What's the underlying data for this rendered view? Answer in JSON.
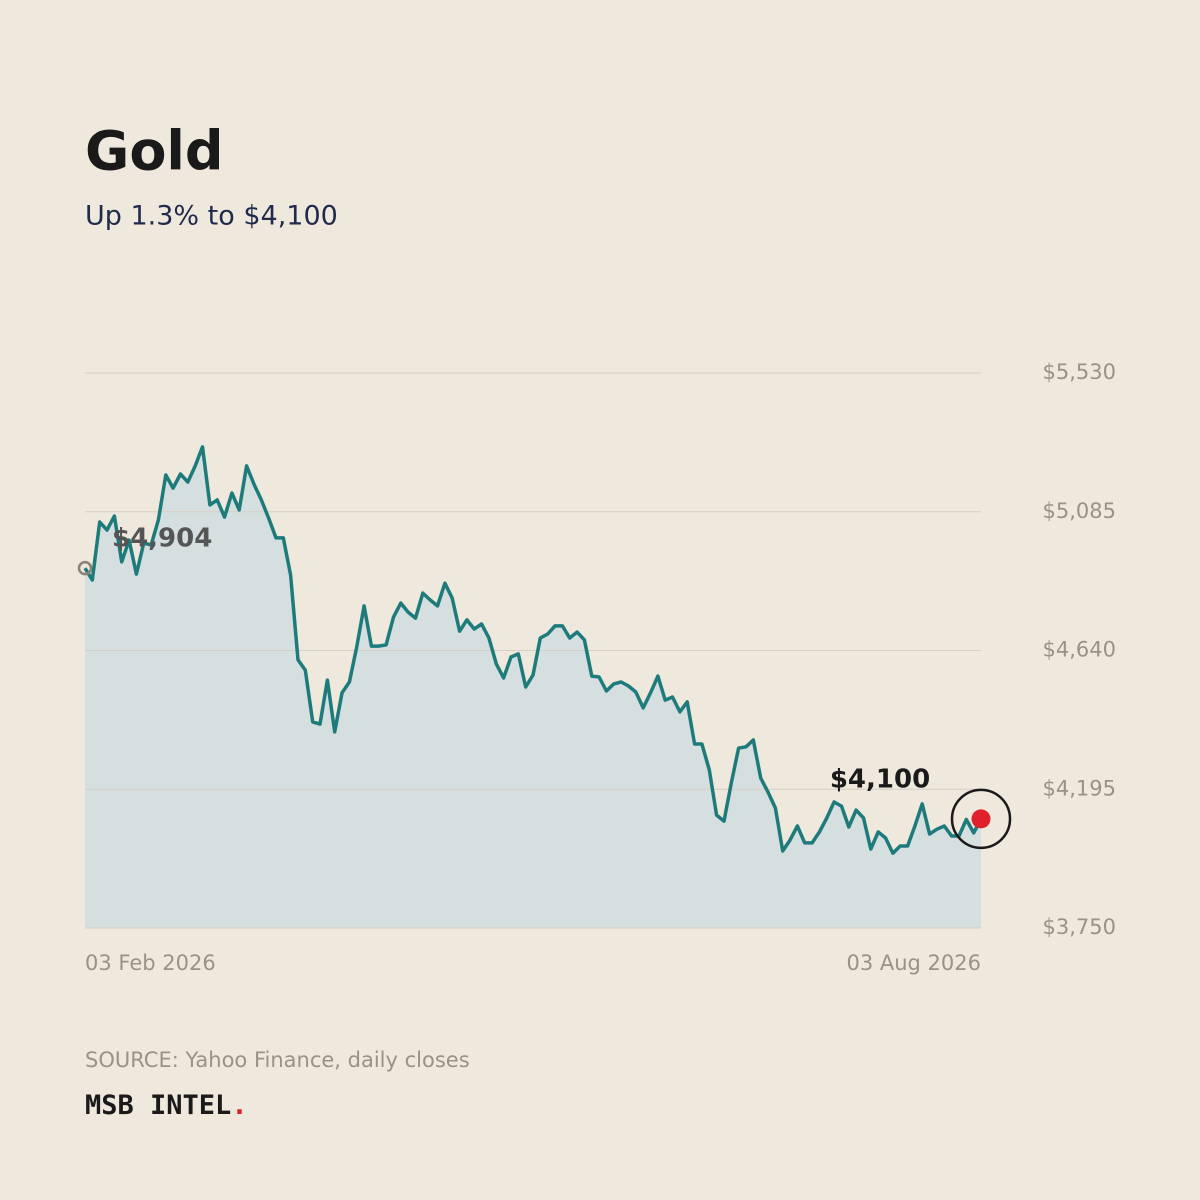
{
  "chart_data": {
    "type": "line",
    "title": "Gold",
    "subtitle": "Up 1.3% to $4,100",
    "source": "SOURCE: Yahoo Finance, daily closes",
    "brand": "MSB INTEL",
    "brand_mark": ".",
    "annotations": [
      {
        "text": "$4,904"
      },
      {
        "text": "$4,100"
      }
    ],
    "categories": [
      "03 Feb 2026",
      null,
      null,
      null,
      null,
      null,
      null,
      null,
      null,
      null,
      null,
      null,
      null,
      null,
      null,
      null,
      null,
      null,
      null,
      null,
      null,
      null,
      null,
      null,
      null,
      null,
      null,
      null,
      null,
      null,
      null,
      null,
      null,
      null,
      null,
      null,
      null,
      null,
      null,
      null,
      null,
      null,
      null,
      null,
      null,
      null,
      null,
      null,
      null,
      null,
      null,
      null,
      null,
      null,
      null,
      null,
      null,
      null,
      null,
      null,
      null,
      null,
      null,
      null,
      null,
      null,
      null,
      null,
      null,
      null,
      null,
      null,
      null,
      null,
      null,
      null,
      null,
      null,
      null,
      null,
      null,
      null,
      null,
      null,
      null,
      null,
      null,
      null,
      null,
      null,
      null,
      null,
      null,
      null,
      null,
      null,
      null,
      null,
      null,
      null,
      null,
      null,
      null,
      null,
      null,
      null,
      null,
      null,
      null,
      null,
      null,
      null,
      null,
      null,
      null,
      null,
      null,
      null,
      null,
      null,
      null,
      null,
      "03 Aug 2026"
    ],
    "series": [
      {
        "name": "Gold",
        "color": "#1e7b7b",
        "fill": "#d5dfe0",
        "values": [
          4904,
          4866,
          5052,
          5026,
          5071,
          4924,
          4994,
          4885,
          4985,
          4978,
          5059,
          5203,
          5161,
          5206,
          5180,
          5232,
          5293,
          5107,
          5123,
          5068,
          5145,
          5091,
          5232,
          5174,
          5123,
          5065,
          5001,
          5001,
          4882,
          4610,
          4577,
          4411,
          4404,
          4545,
          4379,
          4504,
          4539,
          4651,
          4783,
          4654,
          4654,
          4658,
          4747,
          4792,
          4763,
          4744,
          4824,
          4802,
          4783,
          4856,
          4808,
          4702,
          4738,
          4709,
          4725,
          4680,
          4597,
          4552,
          4619,
          4629,
          4523,
          4561,
          4680,
          4693,
          4719,
          4719,
          4680,
          4699,
          4674,
          4558,
          4555,
          4510,
          4533,
          4539,
          4526,
          4507,
          4456,
          4504,
          4558,
          4481,
          4491,
          4443,
          4475,
          4340,
          4340,
          4257,
          4112,
          4093,
          4215,
          4327,
          4331,
          4353,
          4231,
          4186,
          4135,
          3997,
          4032,
          4077,
          4023,
          4023,
          4058,
          4103,
          4154,
          4141,
          4074,
          4128,
          4103,
          4003,
          4058,
          4039,
          3990,
          4013,
          4013,
          4077,
          4148,
          4051,
          4067,
          4077,
          4045,
          4045,
          4098,
          4055,
          4100
        ]
      }
    ],
    "ylim": [
      3750,
      5530
    ],
    "yticks": [
      {
        "value": 3750,
        "label": "$3,750"
      },
      {
        "value": 4195,
        "label": "$4,195"
      },
      {
        "value": 4640,
        "label": "$4,640"
      },
      {
        "value": 5085,
        "label": "$5,085"
      },
      {
        "value": 5530,
        "label": "$5,530"
      }
    ],
    "grid": true
  }
}
